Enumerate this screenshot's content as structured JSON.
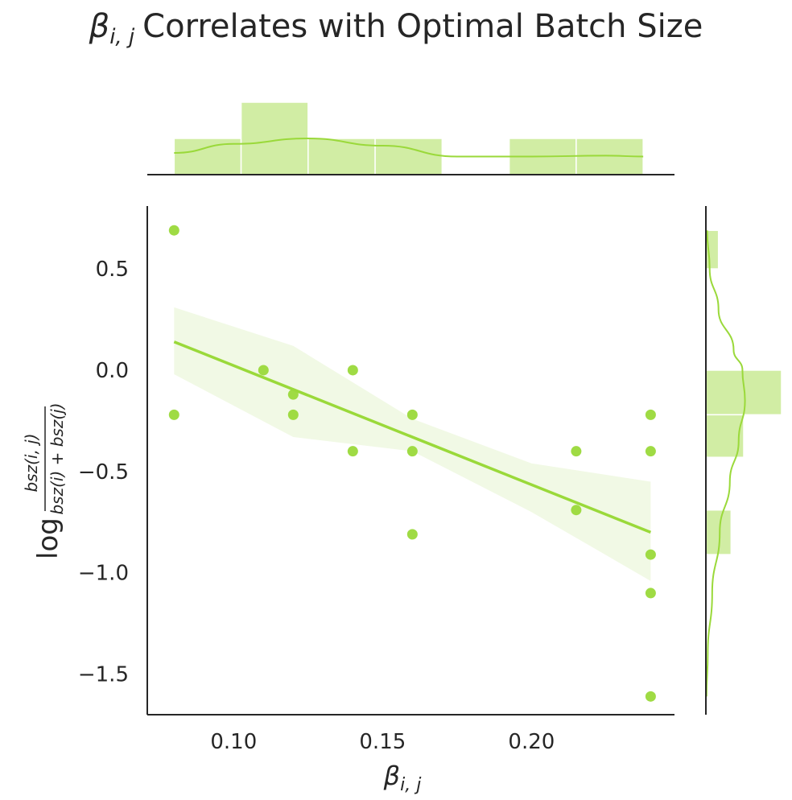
{
  "chart_data": {
    "type": "scatter",
    "title": {
      "symbol": "β",
      "subscript": "i, j",
      "text": "Correlates with Optimal Batch Size"
    },
    "xlabel": {
      "symbol": "β",
      "subscript": "i, j"
    },
    "ylabel": {
      "prefix": "log",
      "numerator": "bsz(i, j)",
      "denominator": "bsz(i) + bsz(j)"
    },
    "xlim": [
      0.071,
      0.248
    ],
    "ylim": [
      -1.7,
      0.81
    ],
    "xticks": [
      0.1,
      0.15,
      0.2
    ],
    "xtick_labels": [
      "0.10",
      "0.15",
      "0.20"
    ],
    "yticks": [
      0.5,
      0.0,
      -0.5,
      -1.0,
      -1.5
    ],
    "ytick_labels": [
      "0.5",
      "0.0",
      "−0.5",
      "−1.0",
      "−1.5"
    ],
    "points": [
      {
        "x": 0.08,
        "y": 0.69
      },
      {
        "x": 0.08,
        "y": -0.22
      },
      {
        "x": 0.11,
        "y": 0.0
      },
      {
        "x": 0.12,
        "y": -0.12
      },
      {
        "x": 0.12,
        "y": -0.22
      },
      {
        "x": 0.14,
        "y": 0.0
      },
      {
        "x": 0.14,
        "y": -0.4
      },
      {
        "x": 0.16,
        "y": -0.22
      },
      {
        "x": 0.16,
        "y": -0.4
      },
      {
        "x": 0.16,
        "y": -0.81
      },
      {
        "x": 0.215,
        "y": -0.4
      },
      {
        "x": 0.215,
        "y": -0.69
      },
      {
        "x": 0.24,
        "y": -0.22
      },
      {
        "x": 0.24,
        "y": -0.4
      },
      {
        "x": 0.24,
        "y": -0.91
      },
      {
        "x": 0.24,
        "y": -1.1
      },
      {
        "x": 0.24,
        "y": -1.61
      }
    ],
    "regression": {
      "x": [
        0.08,
        0.24
      ],
      "y": [
        0.14,
        -0.8
      ],
      "ci_upper": [
        [
          0.08,
          0.31
        ],
        [
          0.12,
          0.12
        ],
        [
          0.16,
          -0.24
        ],
        [
          0.2,
          -0.46
        ],
        [
          0.24,
          -0.55
        ]
      ],
      "ci_lower": [
        [
          0.24,
          -1.04
        ],
        [
          0.2,
          -0.7
        ],
        [
          0.16,
          -0.4
        ],
        [
          0.12,
          -0.33
        ],
        [
          0.08,
          -0.02
        ]
      ]
    },
    "top_marginal": {
      "bins": [
        [
          0.08,
          0.1025,
          2
        ],
        [
          0.1025,
          0.125,
          4
        ],
        [
          0.125,
          0.1475,
          2
        ],
        [
          0.1475,
          0.17,
          2
        ],
        [
          0.17,
          0.1925,
          0
        ],
        [
          0.1925,
          0.215,
          2
        ],
        [
          0.215,
          0.2375,
          2
        ]
      ],
      "max_count": 4,
      "kde": [
        [
          0.08,
          1.2
        ],
        [
          0.1,
          1.7
        ],
        [
          0.125,
          2.0
        ],
        [
          0.15,
          1.6
        ],
        [
          0.175,
          1.0
        ],
        [
          0.2,
          1.0
        ],
        [
          0.225,
          1.05
        ],
        [
          0.2375,
          1.0
        ]
      ]
    },
    "right_marginal": {
      "bins": [
        [
          0.5,
          0.69,
          1
        ],
        [
          -0.22,
          0.0,
          6
        ],
        [
          -0.43,
          -0.22,
          3
        ],
        [
          -0.91,
          -0.69,
          2
        ],
        [
          -1.1,
          -0.91,
          0.1
        ]
      ],
      "max_count": 6,
      "kde": [
        [
          0.69,
          0.1
        ],
        [
          0.5,
          0.3
        ],
        [
          0.3,
          1.0
        ],
        [
          0.1,
          2.2
        ],
        [
          0.0,
          2.9
        ],
        [
          -0.15,
          3.1
        ],
        [
          -0.35,
          2.6
        ],
        [
          -0.55,
          1.9
        ],
        [
          -0.8,
          1.1
        ],
        [
          -1.1,
          0.5
        ],
        [
          -1.4,
          0.15
        ],
        [
          -1.61,
          0.05
        ]
      ],
      "kde_max": 6
    },
    "colors": {
      "main": "#9ad93a",
      "band": "#f1f9e5",
      "hist": "#d1eda4",
      "axis": "#262626"
    }
  }
}
